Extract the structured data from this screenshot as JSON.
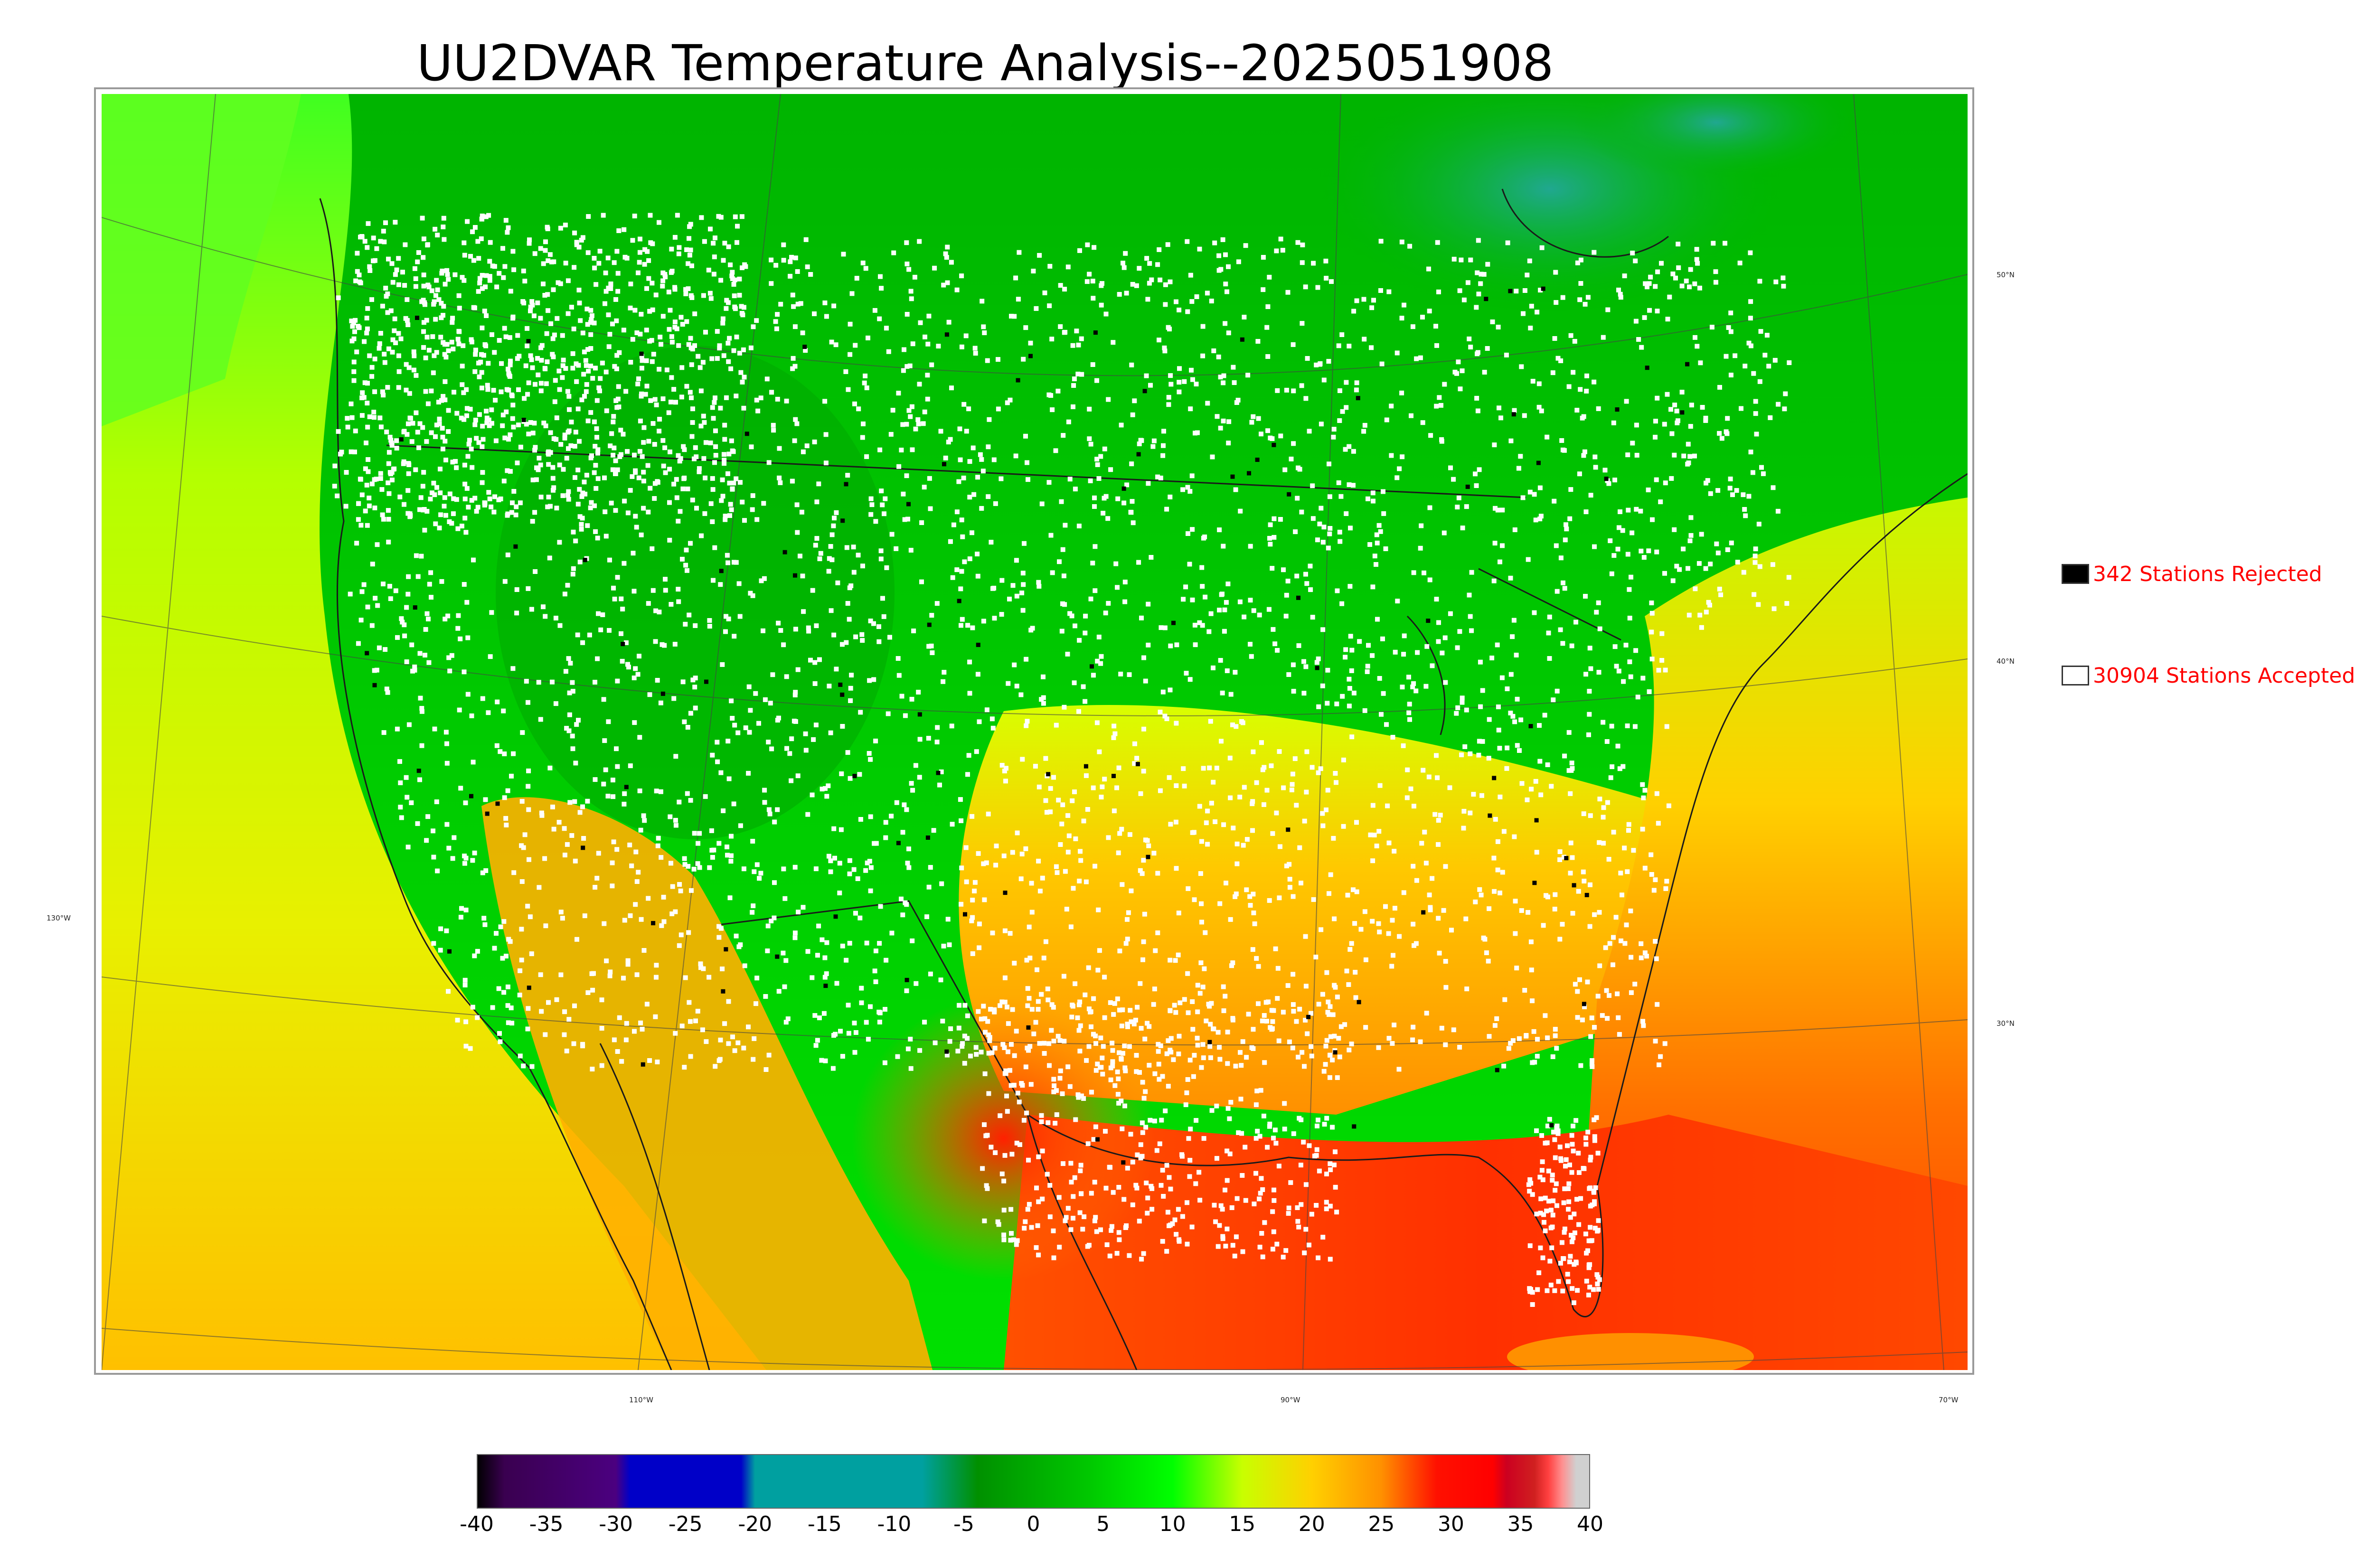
{
  "title": "UU2DVAR Temperature Analysis--2025051908",
  "map": {
    "latitude_labels": [
      "50°N",
      "40°N",
      "30°N"
    ],
    "longitude_labels": [
      "130°W",
      "110°W",
      "90°W",
      "70°W"
    ],
    "icons": {
      "stations": "station-marker-icon",
      "coastline": "coastline-icon"
    }
  },
  "legend": {
    "rejected": {
      "label": "342 Stations Rejected",
      "count": 342,
      "swatch_color": "#000000"
    },
    "accepted": {
      "label": "30904 Stations Accepted",
      "count": 30904,
      "swatch_color": "#ffffff"
    },
    "text_color": "#ff0000"
  },
  "colorbar": {
    "min": -40,
    "max": 40,
    "ticks": [
      "-40",
      "-35",
      "-30",
      "-25",
      "-20",
      "-15",
      "-10",
      "-5",
      "0",
      "5",
      "10",
      "15",
      "20",
      "25",
      "30",
      "35",
      "40"
    ],
    "color_stops": [
      {
        "value": -40,
        "color": "#000000"
      },
      {
        "value": -38,
        "color": "#3a0050"
      },
      {
        "value": -30,
        "color": "#4b0080"
      },
      {
        "value": -29,
        "color": "#0000c8"
      },
      {
        "value": -21,
        "color": "#0000c8"
      },
      {
        "value": -20,
        "color": "#00a0a0"
      },
      {
        "value": -8,
        "color": "#00a0a0"
      },
      {
        "value": -4,
        "color": "#009000"
      },
      {
        "value": 4,
        "color": "#00c800"
      },
      {
        "value": 10,
        "color": "#00ff00"
      },
      {
        "value": 15,
        "color": "#c8ff00"
      },
      {
        "value": 20,
        "color": "#ffd000"
      },
      {
        "value": 25,
        "color": "#ff9000"
      },
      {
        "value": 29,
        "color": "#ff1000"
      },
      {
        "value": 33,
        "color": "#ff0000"
      },
      {
        "value": 34,
        "color": "#cc0020"
      },
      {
        "value": 36,
        "color": "#d02020"
      },
      {
        "value": 37,
        "color": "#ff4040"
      },
      {
        "value": 38,
        "color": "#ff9090"
      },
      {
        "value": 39,
        "color": "#d0d0d0"
      }
    ]
  }
}
